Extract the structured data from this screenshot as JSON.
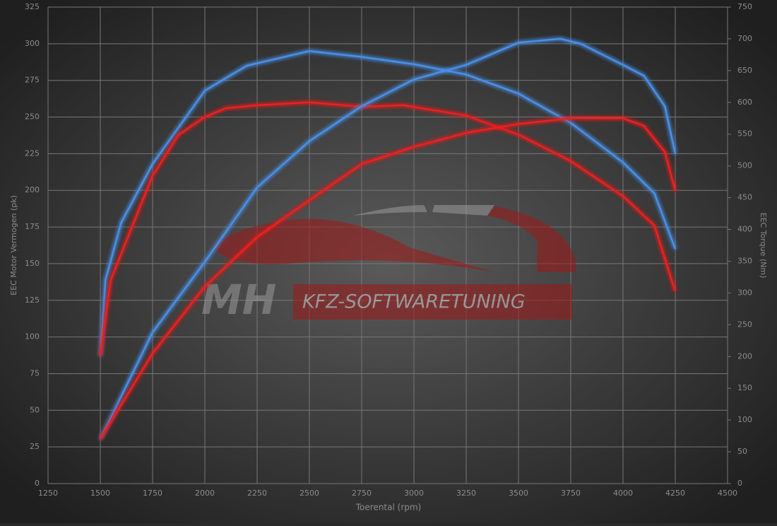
{
  "chart_data": {
    "type": "line",
    "xlabel": "Toerental (rpm)",
    "ylabel": "EEC Motor Vermogen (pk)",
    "y2label": "EEC Torque (Nm)",
    "watermark": {
      "logo": "MH",
      "text": "KFZ-SOFTWARETUNING"
    },
    "xlim": [
      1250,
      4500
    ],
    "xticks": [
      1250,
      1500,
      1750,
      2000,
      2250,
      2500,
      2750,
      3000,
      3250,
      3500,
      3750,
      4000,
      4250,
      4500
    ],
    "ylim": [
      0,
      325
    ],
    "yticks": [
      0,
      25,
      50,
      75,
      100,
      125,
      150,
      175,
      200,
      225,
      250,
      275,
      300,
      325
    ],
    "y2lim": [
      0,
      750
    ],
    "y2ticks": [
      0,
      50,
      100,
      150,
      200,
      250,
      300,
      350,
      400,
      450,
      500,
      550,
      600,
      650,
      700,
      750
    ],
    "grid": true,
    "series": [
      {
        "color": "#4a8fe6",
        "axis": "y",
        "x": [
          1500,
          1525,
          1600,
          1750,
          2000,
          2200,
          2500,
          2750,
          3000,
          3250,
          3500,
          3750,
          4000,
          4150,
          4250
        ],
        "values": [
          87,
          139,
          178,
          218,
          268,
          285,
          295,
          291,
          286,
          279,
          266,
          246,
          219,
          198,
          160
        ]
      },
      {
        "color": "#e82020",
        "axis": "y",
        "x": [
          1500,
          1550,
          1750,
          1875,
          2000,
          2100,
          2250,
          2500,
          2750,
          2950,
          3250,
          3500,
          3750,
          4000,
          4150,
          4250
        ],
        "values": [
          87,
          139,
          210,
          238,
          250,
          256,
          258,
          260,
          257,
          258,
          251,
          238,
          220,
          196,
          176,
          131
        ]
      },
      {
        "color": "#4a8fe6",
        "axis": "y2",
        "x": [
          1500,
          1750,
          2000,
          2250,
          2500,
          2750,
          3000,
          3250,
          3500,
          3700,
          3800,
          4000,
          4100,
          4200,
          4250
        ],
        "values": [
          70,
          238,
          349,
          466,
          539,
          594,
          636,
          659,
          694,
          700,
          692,
          659,
          642,
          594,
          519
        ]
      },
      {
        "color": "#e82020",
        "axis": "y2",
        "x": [
          1500,
          1750,
          2000,
          2250,
          2500,
          2750,
          3000,
          3250,
          3500,
          3750,
          4000,
          4100,
          4200,
          4250
        ],
        "values": [
          70,
          205,
          310,
          388,
          446,
          503,
          530,
          552,
          566,
          575,
          575,
          563,
          522,
          461
        ]
      }
    ]
  }
}
